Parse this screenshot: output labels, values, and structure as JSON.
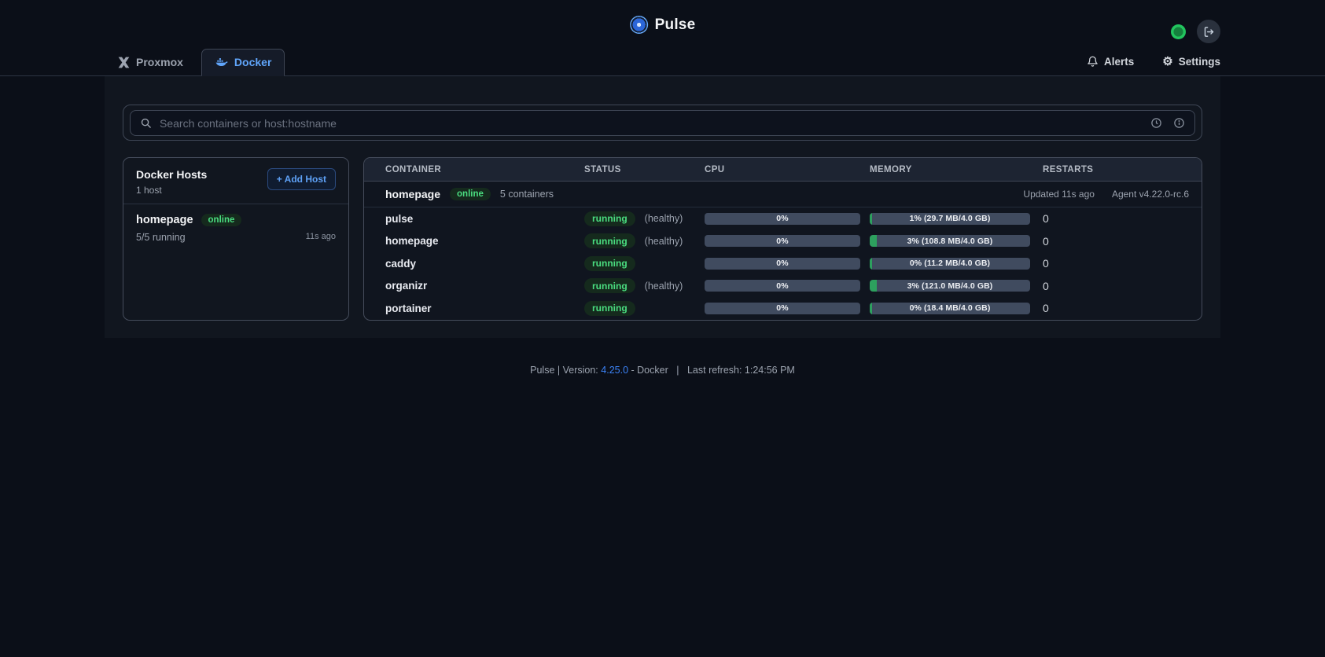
{
  "header": {
    "app_title": "Pulse"
  },
  "tabs": [
    {
      "label": "Proxmox",
      "active": false
    },
    {
      "label": "Docker",
      "active": true
    }
  ],
  "nav": {
    "alerts_label": "Alerts",
    "settings_label": "Settings"
  },
  "search": {
    "placeholder": "Search containers or host:hostname"
  },
  "hosts_panel": {
    "title": "Docker Hosts",
    "subtitle": "1 host",
    "add_button_label": "+ Add Host",
    "hosts": [
      {
        "name": "homepage",
        "status": "online",
        "running": "5/5 running",
        "last_seen": "11s ago"
      }
    ]
  },
  "table": {
    "columns": [
      "CONTAINER",
      "STATUS",
      "CPU",
      "MEMORY",
      "RESTARTS"
    ],
    "group": {
      "name": "homepage",
      "status": "online",
      "count": "5 containers",
      "updated": "Updated 11s ago",
      "agent": "Agent v4.22.0-rc.6"
    },
    "rows": [
      {
        "name": "pulse",
        "status": "running",
        "health": "(healthy)",
        "cpu_label": "0%",
        "cpu_pct": 0,
        "mem_label": "1% (29.7 MB/4.0 GB)",
        "mem_pct": 1,
        "restarts": "0"
      },
      {
        "name": "homepage",
        "status": "running",
        "health": "(healthy)",
        "cpu_label": "0%",
        "cpu_pct": 0,
        "mem_label": "3% (108.8 MB/4.0 GB)",
        "mem_pct": 3,
        "restarts": "0"
      },
      {
        "name": "caddy",
        "status": "running",
        "health": "",
        "cpu_label": "0%",
        "cpu_pct": 0,
        "mem_label": "0% (11.2 MB/4.0 GB)",
        "mem_pct": 0,
        "restarts": "0"
      },
      {
        "name": "organizr",
        "status": "running",
        "health": "(healthy)",
        "cpu_label": "0%",
        "cpu_pct": 0,
        "mem_label": "3% (121.0 MB/4.0 GB)",
        "mem_pct": 3,
        "restarts": "0"
      },
      {
        "name": "portainer",
        "status": "running",
        "health": "",
        "cpu_label": "0%",
        "cpu_pct": 0,
        "mem_label": "0% (18.4 MB/4.0 GB)",
        "mem_pct": 0,
        "restarts": "0"
      }
    ]
  },
  "footer": {
    "prefix": "Pulse | Version:",
    "version": "4.25.0",
    "mid": "- Docker",
    "separator": "|",
    "refresh": "Last refresh: 1:24:56 PM"
  },
  "icons": {
    "gear": "⚙",
    "names": [
      "pulse-logo-icon",
      "connection-status-dot",
      "logout-icon",
      "proxmox-icon",
      "docker-whale-icon",
      "bell-icon",
      "gear-icon",
      "search-icon",
      "clock-icon",
      "info-icon",
      "plus-icon"
    ]
  },
  "colors": {
    "page_bg": "#0b0f18",
    "panel_bg": "#11161f",
    "accent_blue": "#60a5fa",
    "link_blue": "#3b82f6",
    "status_green": "#4ade80",
    "bar_fill_green": "#2da05e",
    "bar_bg": "#404b5f",
    "muted_text": "#9ca3af"
  }
}
